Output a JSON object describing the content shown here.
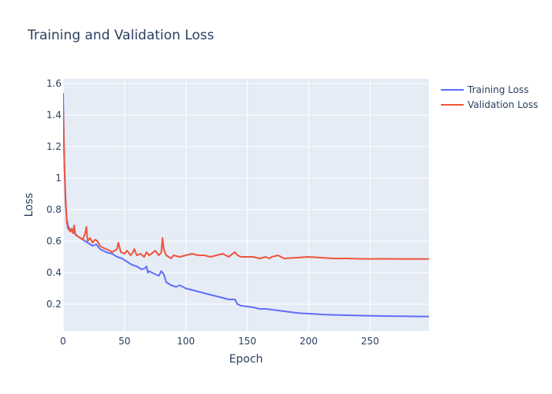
{
  "chart_data": {
    "type": "line",
    "title": "Training and Validation Loss",
    "xlabel": "Epoch",
    "ylabel": "Loss",
    "xlim": [
      0,
      298
    ],
    "ylim": [
      0.03,
      1.63
    ],
    "x_ticks": [
      0,
      50,
      100,
      150,
      200,
      250
    ],
    "x_tick_labels": [
      "0",
      "50",
      "100",
      "150",
      "200",
      "250"
    ],
    "y_ticks": [
      0.2,
      0.4,
      0.6,
      0.8,
      1.0,
      1.2,
      1.4,
      1.6
    ],
    "y_tick_labels": [
      "0.2",
      "0.4",
      "0.6",
      "0.8",
      "1",
      "1.2",
      "1.4",
      "1.6"
    ],
    "grid": true,
    "legend_position": "top-right",
    "series": [
      {
        "name": "Training Loss",
        "color": "#636efa",
        "x": [
          0,
          1,
          2,
          3,
          4,
          5,
          8,
          12,
          16,
          20,
          24,
          27,
          30,
          35,
          40,
          44,
          48,
          52,
          56,
          60,
          64,
          67,
          68,
          69,
          70,
          75,
          78,
          80,
          82,
          84,
          88,
          92,
          95,
          100,
          105,
          110,
          115,
          120,
          125,
          130,
          135,
          140,
          142,
          145,
          150,
          155,
          160,
          165,
          170,
          175,
          180,
          190,
          195,
          200,
          210,
          220,
          230,
          240,
          250,
          260,
          270,
          280,
          290,
          298
        ],
        "y": [
          1.54,
          1.1,
          0.84,
          0.74,
          0.7,
          0.68,
          0.66,
          0.63,
          0.61,
          0.59,
          0.57,
          0.58,
          0.55,
          0.53,
          0.52,
          0.5,
          0.49,
          0.47,
          0.45,
          0.44,
          0.42,
          0.43,
          0.44,
          0.4,
          0.41,
          0.39,
          0.38,
          0.41,
          0.39,
          0.34,
          0.32,
          0.31,
          0.32,
          0.3,
          0.29,
          0.28,
          0.27,
          0.26,
          0.25,
          0.24,
          0.23,
          0.23,
          0.2,
          0.19,
          0.185,
          0.18,
          0.17,
          0.17,
          0.165,
          0.16,
          0.155,
          0.145,
          0.142,
          0.14,
          0.135,
          0.132,
          0.13,
          0.128,
          0.126,
          0.125,
          0.124,
          0.123,
          0.122,
          0.122
        ]
      },
      {
        "name": "Validation Loss",
        "color": "#ef553b",
        "x": [
          0,
          1,
          2,
          3,
          4,
          5,
          6,
          7,
          8,
          9,
          10,
          12,
          14,
          16,
          18,
          19,
          20,
          22,
          24,
          26,
          28,
          30,
          32,
          35,
          38,
          40,
          42,
          44,
          45,
          47,
          50,
          52,
          55,
          57,
          58,
          60,
          63,
          66,
          68,
          70,
          72,
          75,
          78,
          80,
          81,
          82,
          84,
          86,
          88,
          90,
          95,
          100,
          105,
          110,
          115,
          120,
          125,
          130,
          135,
          138,
          140,
          142,
          145,
          150,
          155,
          160,
          165,
          168,
          170,
          175,
          180,
          190,
          200,
          210,
          220,
          230,
          240,
          250,
          260,
          270,
          280,
          290,
          298
        ],
        "y": [
          1.46,
          1.1,
          0.88,
          0.72,
          0.68,
          0.67,
          0.66,
          0.68,
          0.65,
          0.7,
          0.64,
          0.63,
          0.62,
          0.61,
          0.65,
          0.69,
          0.6,
          0.62,
          0.59,
          0.61,
          0.6,
          0.57,
          0.56,
          0.55,
          0.54,
          0.53,
          0.54,
          0.55,
          0.59,
          0.53,
          0.52,
          0.54,
          0.51,
          0.53,
          0.55,
          0.51,
          0.52,
          0.5,
          0.53,
          0.51,
          0.52,
          0.54,
          0.51,
          0.53,
          0.62,
          0.55,
          0.51,
          0.5,
          0.49,
          0.51,
          0.5,
          0.51,
          0.52,
          0.51,
          0.51,
          0.5,
          0.51,
          0.52,
          0.5,
          0.52,
          0.53,
          0.51,
          0.5,
          0.5,
          0.5,
          0.49,
          0.5,
          0.49,
          0.5,
          0.51,
          0.49,
          0.495,
          0.5,
          0.495,
          0.49,
          0.49,
          0.488,
          0.487,
          0.488,
          0.487,
          0.487,
          0.487,
          0.487
        ]
      }
    ]
  }
}
